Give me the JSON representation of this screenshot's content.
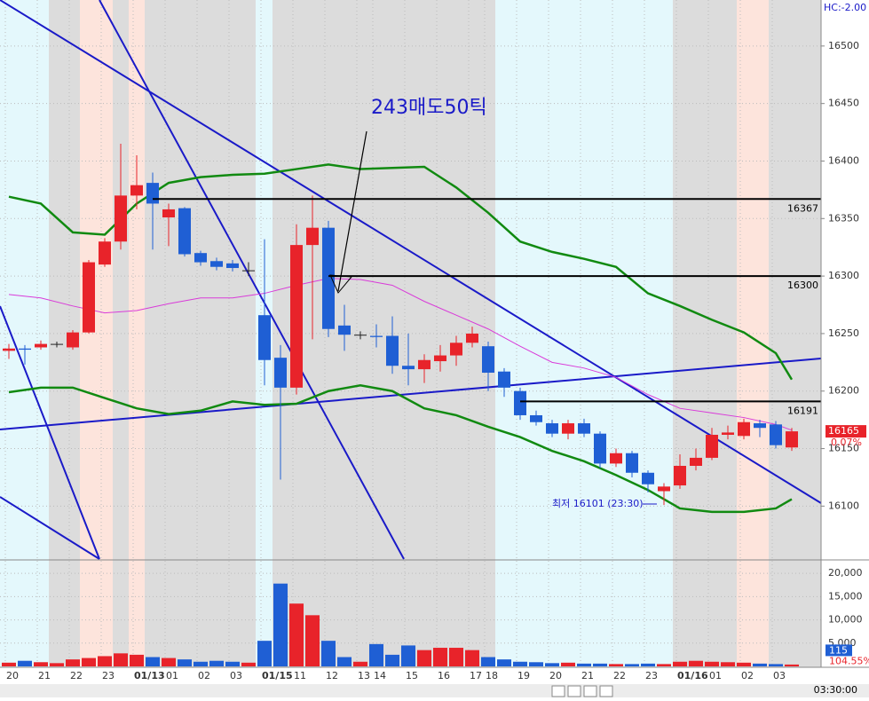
{
  "chart_data": {
    "type": "candlestick",
    "categories": [
      "20",
      null,
      "21",
      null,
      "22",
      null,
      "23",
      null,
      "01/13",
      null,
      "01",
      null,
      "02",
      null,
      "03",
      null,
      "01/15",
      null,
      "11",
      null,
      "12",
      null,
      "13",
      "14",
      null,
      "15",
      null,
      "16",
      null,
      "17",
      "18",
      null,
      "19",
      null,
      "20",
      null,
      "21",
      null,
      "22",
      null,
      "23",
      null,
      "01/16",
      null,
      "01",
      null,
      "02",
      null,
      "03",
      null
    ],
    "open": [
      16235,
      16237,
      16238,
      16241,
      16238,
      16251,
      16310,
      16330,
      16370,
      16381,
      16351,
      16359,
      16320,
      16313,
      16311,
      16305,
      16266,
      16229,
      16203,
      16327,
      16342,
      16257,
      16249,
      16248,
      16248,
      16222,
      16219,
      16226,
      16231,
      16242,
      16239,
      16217,
      16200,
      16179,
      16172,
      16163,
      16172,
      16163,
      16137,
      16146,
      16129,
      16113,
      16118,
      16135,
      16142,
      16162,
      16161,
      16172,
      16171,
      16151
    ],
    "close": [
      16237,
      16236,
      16241,
      16241,
      16251,
      16312,
      16330,
      16370,
      16379,
      16363,
      16358,
      16319,
      16312,
      16308,
      16307,
      16305,
      16227,
      16203,
      16327,
      16342,
      16254,
      16249,
      16249,
      16247,
      16222,
      16219,
      16227,
      16231,
      16242,
      16250,
      16216,
      16203,
      16179,
      16173,
      16163,
      16172,
      16163,
      16137,
      16146,
      16129,
      16119,
      16117,
      16135,
      16142,
      16162,
      16164,
      16173,
      16168,
      16153,
      16165
    ],
    "high": [
      16241,
      16240,
      16244,
      16243,
      16253,
      16314,
      16333,
      16415,
      16405,
      16390,
      16363,
      16360,
      16322,
      16316,
      16314,
      16312,
      16332,
      16240,
      16345,
      16370,
      16348,
      16275,
      16252,
      16258,
      16265,
      16250,
      16232,
      16240,
      16248,
      16256,
      16243,
      16220,
      16203,
      16183,
      16175,
      16175,
      16176,
      16165,
      16150,
      16148,
      16131,
      16120,
      16145,
      16150,
      16168,
      16170,
      16176,
      16175,
      16174,
      16168
    ],
    "low": [
      16228,
      16223,
      16236,
      16238,
      16236,
      16250,
      16308,
      16323,
      16358,
      16323,
      16326,
      16317,
      16309,
      16305,
      16304,
      16300,
      16205,
      16123,
      16197,
      16245,
      16247,
      16235,
      16245,
      16238,
      16215,
      16205,
      16207,
      16217,
      16222,
      16238,
      16200,
      16195,
      16175,
      16170,
      16160,
      16158,
      16160,
      16133,
      16134,
      16125,
      16112,
      16101,
      16115,
      16131,
      16140,
      16158,
      16158,
      16160,
      16150,
      16148
    ],
    "up_color": "#e8232a",
    "down_color": "#1f5fd4",
    "band_index": [
      0,
      2,
      4,
      6,
      8,
      10,
      12,
      14,
      16,
      18,
      20,
      22,
      24,
      26,
      28,
      30,
      32,
      34,
      36,
      38,
      40,
      42,
      44,
      46,
      48,
      49
    ],
    "upper_band": [
      16369,
      16363,
      16338,
      16336,
      16363,
      16381,
      16386,
      16388,
      16389,
      16393,
      16397,
      16393,
      16394,
      16395,
      16377,
      16355,
      16330,
      16321,
      16315,
      16308,
      16285,
      16274,
      16262,
      16251,
      16233,
      16210
    ],
    "lower_band": [
      16199,
      16203,
      16203,
      16194,
      16185,
      16180,
      16183,
      16191,
      16188,
      16189,
      16200,
      16205,
      16200,
      16185,
      16179,
      16169,
      16160,
      16148,
      16139,
      16127,
      16114,
      16098,
      16095,
      16095,
      16098,
      16106
    ],
    "moving_average": [
      16284,
      16281,
      16274,
      16268,
      16270,
      16276,
      16281,
      16281,
      16285,
      16292,
      16298,
      16297,
      16292,
      16278,
      16266,
      16254,
      16239,
      16225,
      16220,
      16212,
      16197,
      16185,
      16181,
      16177,
      16171,
      16166
    ],
    "band_color": "#118a11",
    "ma_color": "#d93bd9",
    "levels": [
      16367,
      16300,
      16191
    ],
    "ylim": [
      16054,
      16540
    ],
    "yticks": [
      16100,
      16150,
      16200,
      16250,
      16300,
      16350,
      16400,
      16450,
      16500
    ],
    "annotation": "243매도50틱",
    "low_note": "최저 16101 (23:30)",
    "last_price": 16165,
    "change": "0.07%",
    "indicator": "HC:-2.00",
    "volume": [
      800,
      1200,
      900,
      700,
      1500,
      1800,
      2200,
      2800,
      2500,
      2000,
      1800,
      1500,
      1000,
      1200,
      1000,
      800,
      5500,
      17800,
      13500,
      11000,
      5500,
      2000,
      1000,
      4800,
      2500,
      4500,
      3500,
      4000,
      4000,
      3500,
      2000,
      1500,
      1000,
      900,
      700,
      800,
      600,
      600,
      500,
      500,
      600,
      500,
      1000,
      1200,
      1000,
      900,
      800,
      600,
      500,
      400
    ],
    "vylim": [
      0,
      22700
    ],
    "vyticks": [
      {
        "value": 5000,
        "label": "5,000"
      },
      {
        "value": 10000,
        "label": "10,000"
      },
      {
        "value": 15000,
        "label": "15,000"
      },
      {
        "value": 20000,
        "label": "20,000"
      }
    ],
    "volume_last": 115,
    "volume_ratio": "104.55%",
    "clock": "03:30:00"
  }
}
